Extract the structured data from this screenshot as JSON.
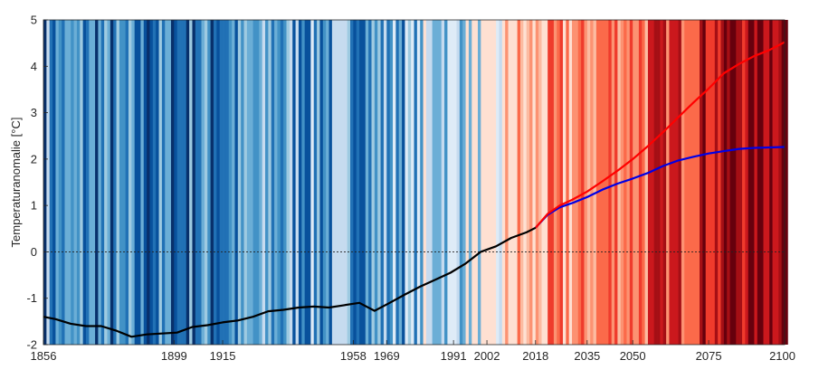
{
  "chart_data": {
    "type": "line",
    "title": "",
    "ylabel": "Temperaturanomalie [°C]",
    "xlabel": "",
    "xlim": [
      1856,
      2100
    ],
    "ylim": [
      -2,
      5
    ],
    "grid": false,
    "x_ticks": [
      1856,
      1899,
      1915,
      1958,
      1969,
      1991,
      2002,
      2018,
      2035,
      2050,
      2075,
      2100
    ],
    "y_ticks": [
      -2,
      -1,
      0,
      1,
      2,
      3,
      4,
      5
    ],
    "reference_line": {
      "y": 0,
      "style": "dotted",
      "color": "#222222"
    },
    "background_stripes": {
      "description": "warming stripes",
      "range": [
        1856,
        2100
      ],
      "colormap": [
        "#08306b",
        "#08519c",
        "#2171b5",
        "#4292c6",
        "#6baed6",
        "#9ecae1",
        "#c6dbef",
        "#deebf7",
        "#fee0d2",
        "#fcbba1",
        "#fc9272",
        "#fb6a4a",
        "#ef3b2c",
        "#cb181d",
        "#a50f15",
        "#67000d"
      ]
    },
    "series": [
      {
        "color": "#000000",
        "x": [
          1856,
          1860,
          1865,
          1870,
          1875,
          1880,
          1885,
          1890,
          1895,
          1900,
          1905,
          1910,
          1915,
          1920,
          1925,
          1930,
          1935,
          1940,
          1945,
          1950,
          1955,
          1960,
          1965,
          1970,
          1975,
          1980,
          1985,
          1990,
          1995,
          2000,
          2005,
          2010,
          2015,
          2018
        ],
        "y": [
          -1.4,
          -1.45,
          -1.55,
          -1.6,
          -1.6,
          -1.7,
          -1.83,
          -1.78,
          -1.76,
          -1.74,
          -1.62,
          -1.58,
          -1.52,
          -1.48,
          -1.4,
          -1.28,
          -1.25,
          -1.2,
          -1.18,
          -1.2,
          -1.15,
          -1.1,
          -1.27,
          -1.1,
          -0.92,
          -0.75,
          -0.6,
          -0.45,
          -0.25,
          0.0,
          0.12,
          0.3,
          0.42,
          0.52
        ]
      },
      {
        "color": "#ff0000",
        "x": [
          2018,
          2022,
          2026,
          2030,
          2035,
          2040,
          2045,
          2050,
          2055,
          2060,
          2065,
          2070,
          2075,
          2080,
          2085,
          2090,
          2095,
          2100
        ],
        "y": [
          0.52,
          0.82,
          1.0,
          1.12,
          1.3,
          1.52,
          1.75,
          2.0,
          2.28,
          2.58,
          2.9,
          3.22,
          3.52,
          3.85,
          4.05,
          4.22,
          4.35,
          4.52
        ]
      },
      {
        "color": "#0000e6",
        "x": [
          2018,
          2022,
          2026,
          2030,
          2035,
          2040,
          2045,
          2050,
          2055,
          2060,
          2065,
          2070,
          2075,
          2080,
          2085,
          2090,
          2095,
          2100
        ],
        "y": [
          0.52,
          0.8,
          0.96,
          1.05,
          1.18,
          1.34,
          1.47,
          1.58,
          1.7,
          1.85,
          1.97,
          2.05,
          2.12,
          2.17,
          2.22,
          2.24,
          2.25,
          2.26
        ]
      }
    ]
  }
}
